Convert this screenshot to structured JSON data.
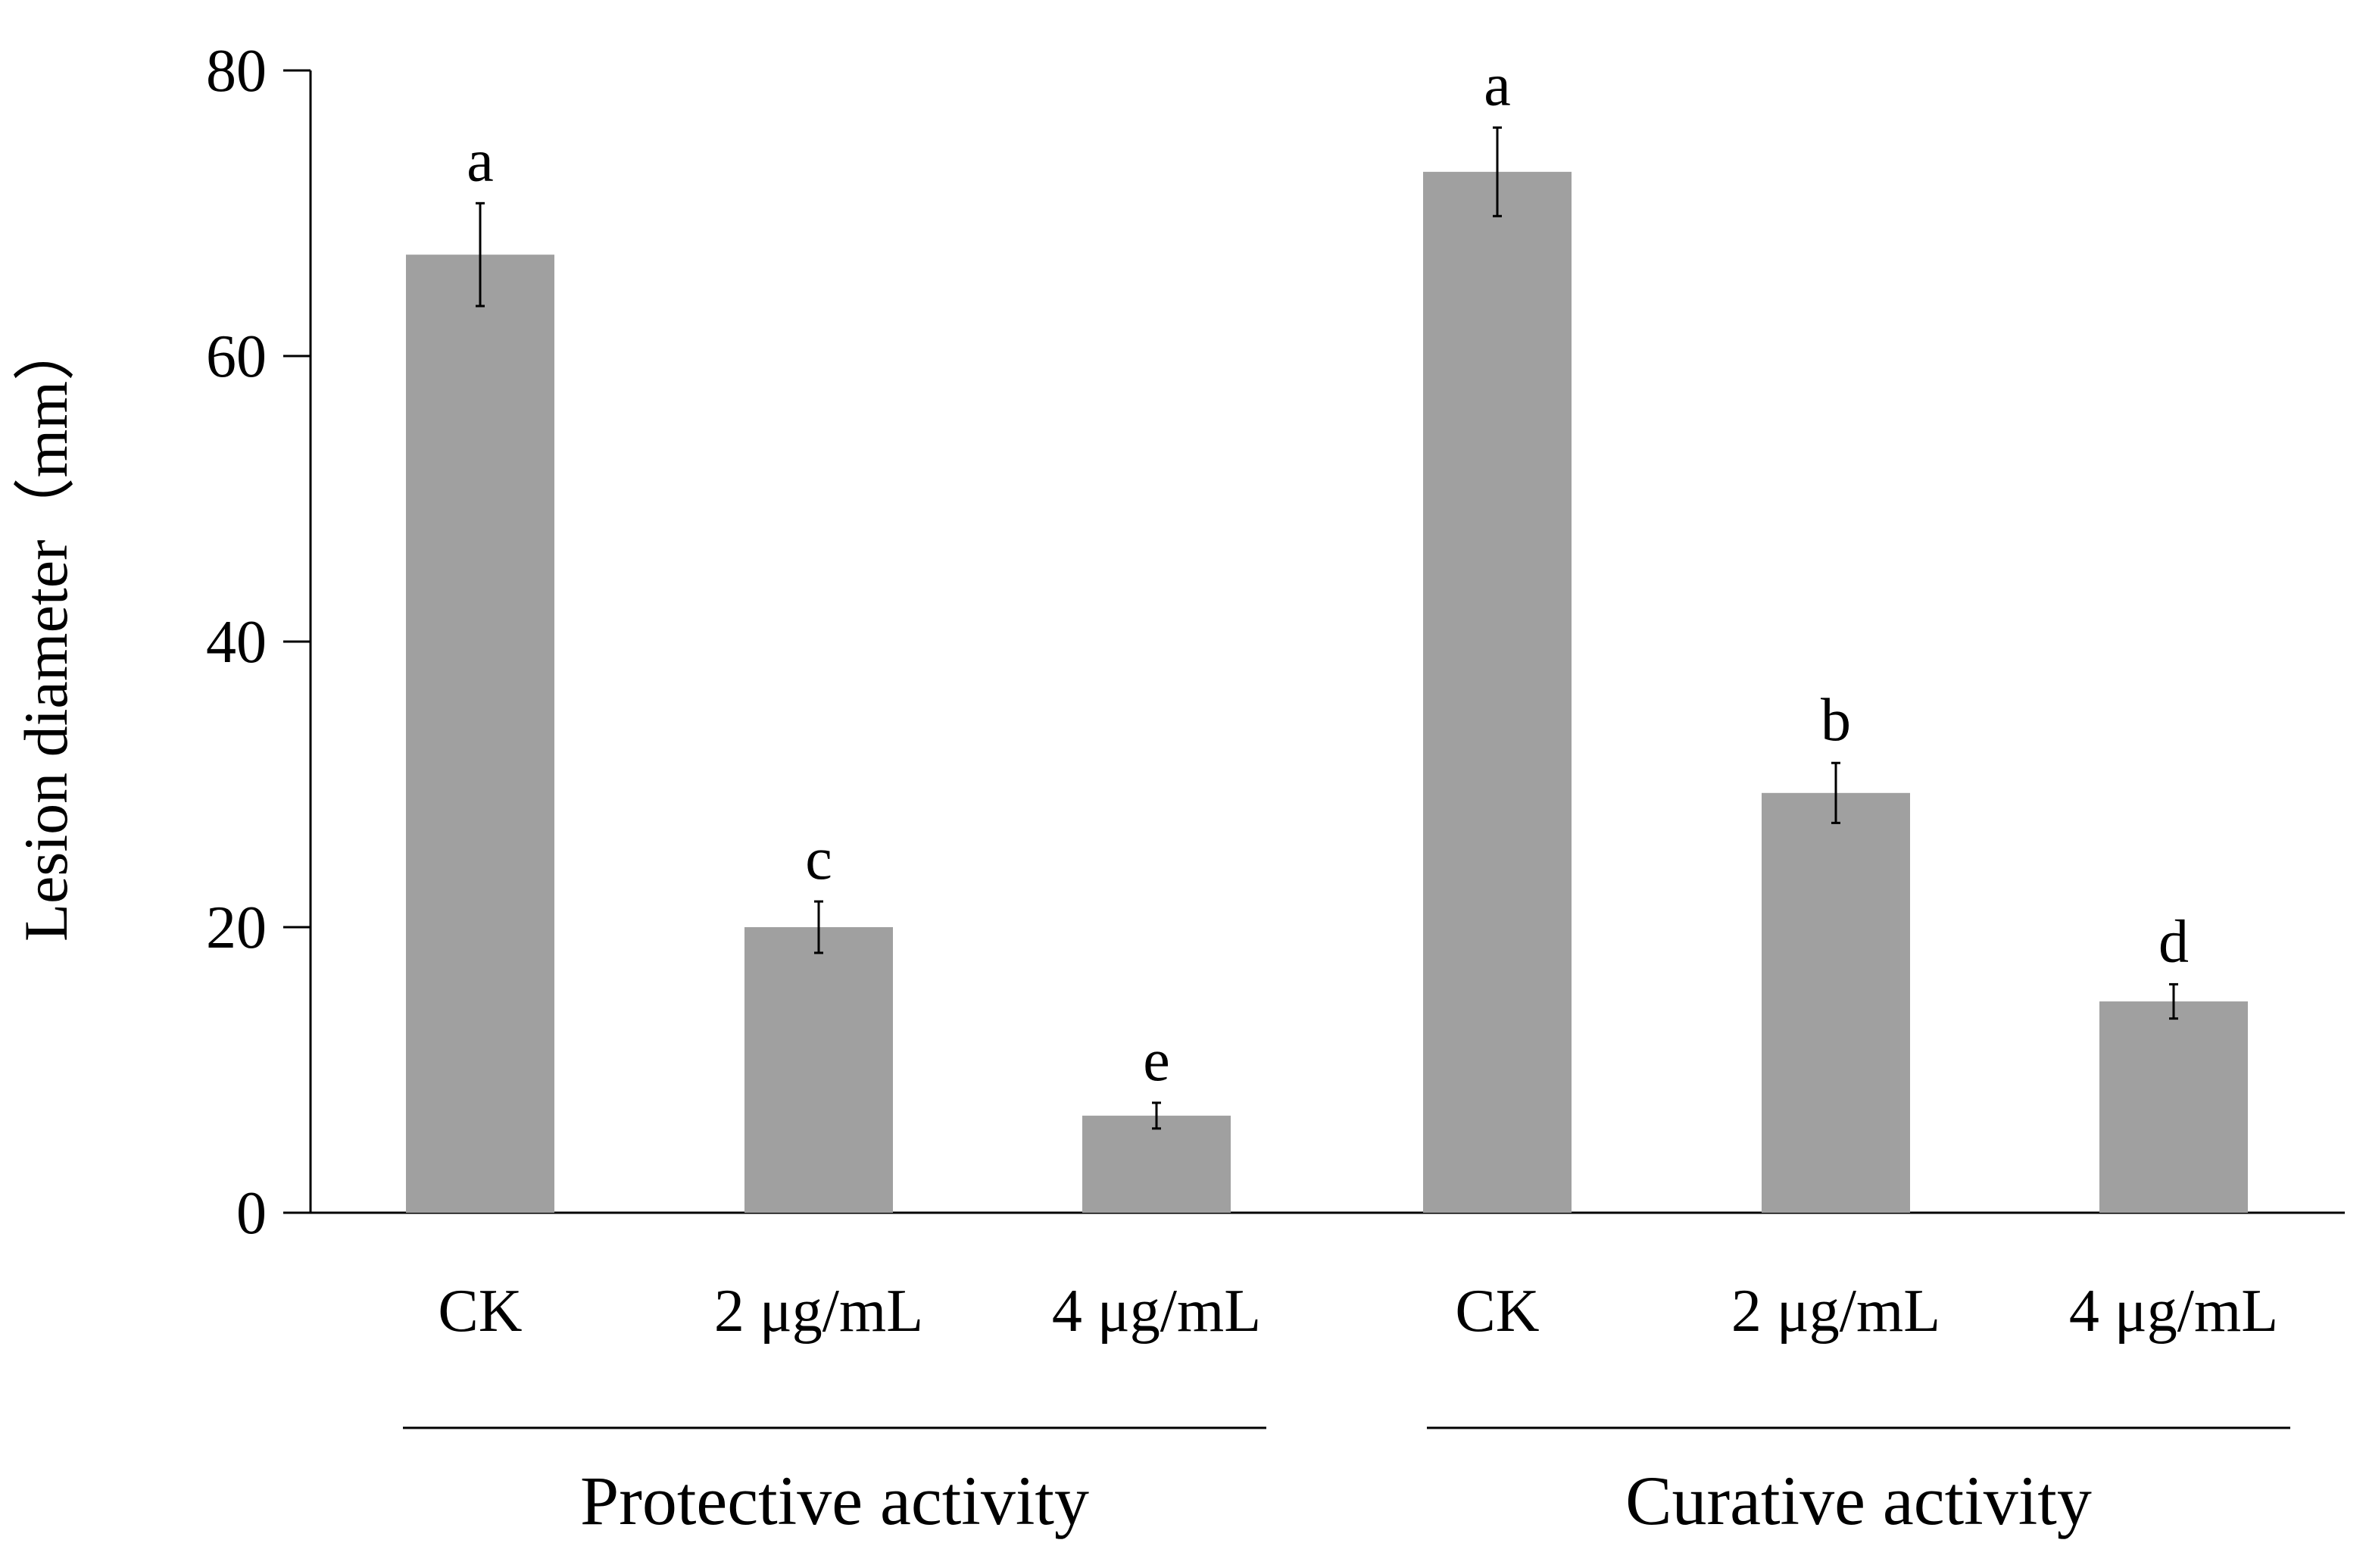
{
  "chart_data": {
    "type": "bar",
    "ylabel": "Lesion diameter（mm）",
    "ylim": [
      0,
      80
    ],
    "yticks": [
      0,
      20,
      40,
      60,
      80
    ],
    "grid": false,
    "groups": [
      "Protective activity",
      "Curative activity"
    ],
    "bars": [
      {
        "group": "Protective activity",
        "label": "CK",
        "value": 67.1,
        "error": 3.6,
        "letter": "a"
      },
      {
        "group": "Protective activity",
        "label": "2 μg/mL",
        "value": 20.0,
        "error": 1.8,
        "letter": "c"
      },
      {
        "group": "Protective activity",
        "label": "4 μg/mL",
        "value": 6.8,
        "error": 0.9,
        "letter": "e"
      },
      {
        "group": "Curative activity",
        "label": "CK",
        "value": 72.9,
        "error": 3.1,
        "letter": "a"
      },
      {
        "group": "Curative activity",
        "label": "2 μg/mL",
        "value": 29.4,
        "error": 2.1,
        "letter": "b"
      },
      {
        "group": "Curative activity",
        "label": "4 μg/mL",
        "value": 14.8,
        "error": 1.2,
        "letter": "d"
      }
    ],
    "bar_color": "#a0a0a0",
    "axis_color": "#000000"
  }
}
